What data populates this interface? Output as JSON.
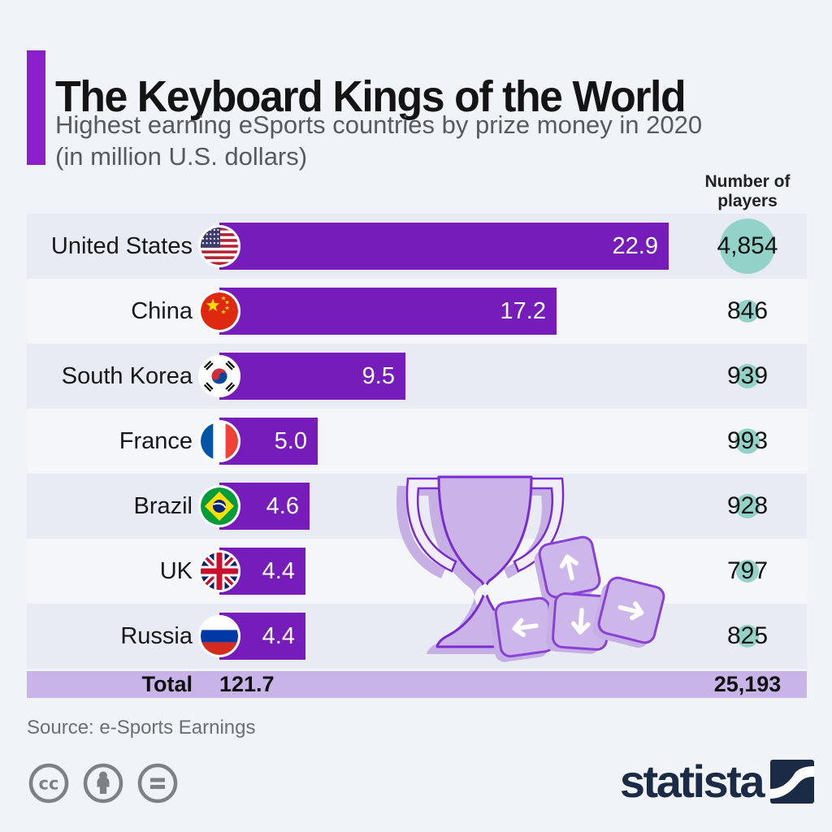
{
  "header": {
    "title": "The Keyboard Kings of the World",
    "subtitle_line1": "Highest earning eSports countries by prize money in 2020",
    "subtitle_line2": "(in million U.S. dollars)"
  },
  "table": {
    "players_header": "Number of players",
    "total_label": "Total",
    "total_value": "121.7",
    "total_players": "25,193"
  },
  "chart_data": {
    "type": "bar",
    "orientation": "horizontal",
    "title": "The Keyboard Kings of the World",
    "subtitle": "Highest earning eSports countries by prize money in 2020 (in million U.S. dollars)",
    "unit": "million U.S. dollars",
    "xlim": [
      0,
      22.9
    ],
    "grid": false,
    "categories": [
      "United States",
      "China",
      "South Korea",
      "France",
      "Brazil",
      "UK",
      "Russia"
    ],
    "series": [
      {
        "name": "Prize money (million U.S. dollars)",
        "values": [
          22.9,
          17.2,
          9.5,
          5.0,
          4.6,
          4.4,
          4.4
        ]
      },
      {
        "name": "Number of players",
        "values": [
          4854,
          846,
          939,
          993,
          928,
          797,
          825
        ]
      }
    ],
    "rows": [
      {
        "label": "United States",
        "flag": "us",
        "value": 22.9,
        "value_label": "22.9",
        "players": 4854,
        "players_label": "4,854"
      },
      {
        "label": "China",
        "flag": "cn",
        "value": 17.2,
        "value_label": "17.2",
        "players": 846,
        "players_label": "846"
      },
      {
        "label": "South Korea",
        "flag": "kr",
        "value": 9.5,
        "value_label": "9.5",
        "players": 939,
        "players_label": "939"
      },
      {
        "label": "France",
        "flag": "fr",
        "value": 5.0,
        "value_label": "5.0",
        "players": 993,
        "players_label": "993"
      },
      {
        "label": "Brazil",
        "flag": "br",
        "value": 4.6,
        "value_label": "4.6",
        "players": 928,
        "players_label": "928"
      },
      {
        "label": "UK",
        "flag": "gb",
        "value": 4.4,
        "value_label": "4.4",
        "players": 797,
        "players_label": "797"
      },
      {
        "label": "Russia",
        "flag": "ru",
        "value": 4.4,
        "value_label": "4.4",
        "players": 825,
        "players_label": "825"
      }
    ],
    "total": {
      "prize": 121.7,
      "players": 25193
    }
  },
  "footer": {
    "source": "Source: e-Sports Earnings",
    "brand": "statista",
    "license_icons": [
      "cc-icon",
      "cc-attribution-icon",
      "cc-nd-icon"
    ]
  },
  "illustration": {
    "name": "trophy-and-arrow-keys",
    "keys": [
      "up",
      "left",
      "down",
      "right"
    ]
  },
  "colors": {
    "pageBg": "#f0f3f8",
    "accent": "#8b1fc9",
    "bar": "#761cba",
    "rowShade": "#e8ebf4",
    "rowLight": "#f4f6fa",
    "totalBand": "#c9b4e9",
    "circle": "#92d2c9",
    "titleColor": "#141414",
    "subtitleColor": "#595a5e",
    "sourceColor": "#6e6f72",
    "ccGray": "#7d8185",
    "navy": "#1b2b46",
    "trophyFill": "#cbb3e8",
    "trophyStroke": "#7a2bd1",
    "trophyShadow": "#c6afe2",
    "keyFill": "#cdb7ea",
    "keyStroke": "#8a42d6"
  }
}
